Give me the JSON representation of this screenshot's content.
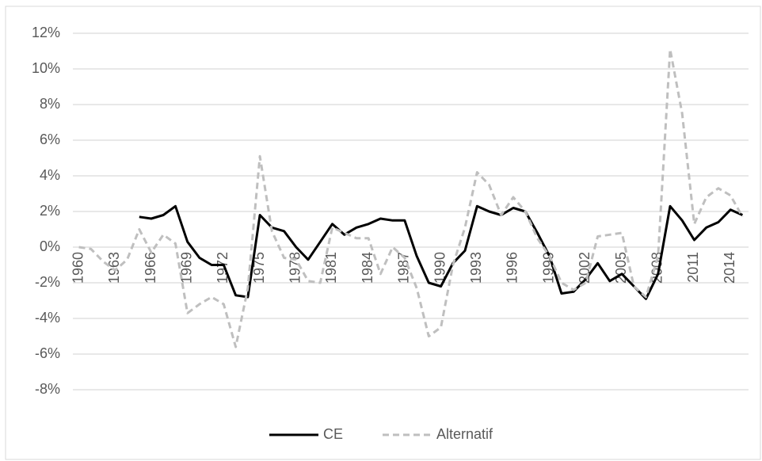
{
  "chart_data": {
    "type": "line",
    "categories": [
      "1960",
      null,
      null,
      "1963",
      null,
      null,
      "1966",
      null,
      null,
      "1969",
      null,
      null,
      "1972",
      null,
      null,
      "1975",
      null,
      null,
      "1978",
      null,
      null,
      "1981",
      null,
      null,
      "1984",
      null,
      null,
      "1987",
      null,
      null,
      "1990",
      null,
      null,
      "1993",
      null,
      null,
      "1996",
      null,
      null,
      "1999",
      null,
      null,
      "2002",
      null,
      null,
      "2005",
      null,
      null,
      "2008",
      null,
      null,
      "2011",
      null,
      null,
      "2014",
      null
    ],
    "series": [
      {
        "name": "CE",
        "color": "#000000",
        "dash": false,
        "values": [
          null,
          null,
          null,
          null,
          null,
          1.7,
          1.6,
          1.8,
          2.3,
          0.3,
          -0.6,
          -1.0,
          -1.0,
          -2.7,
          -2.8,
          1.8,
          1.1,
          0.9,
          0.0,
          -0.7,
          0.3,
          1.3,
          0.7,
          1.1,
          1.3,
          1.6,
          1.5,
          1.5,
          -0.5,
          -2.0,
          -2.2,
          -0.9,
          -0.2,
          2.3,
          2.0,
          1.8,
          2.2,
          2.0,
          0.8,
          -0.5,
          -2.6,
          -2.5,
          -1.8,
          -0.9,
          -1.9,
          -1.5,
          -2.2,
          -2.9,
          -1.5,
          2.3,
          1.5,
          0.4,
          1.1,
          1.4,
          2.1,
          1.8
        ]
      },
      {
        "name": "Alternatif",
        "color": "#bfbfbf",
        "dash": true,
        "values": [
          0.0,
          -0.1,
          -0.8,
          -1.3,
          -0.7,
          1.0,
          -0.3,
          0.7,
          0.2,
          -3.7,
          -3.2,
          -2.8,
          -3.2,
          -5.6,
          -2.3,
          5.1,
          0.9,
          -0.6,
          -0.7,
          -1.9,
          -2.0,
          1.1,
          0.8,
          0.5,
          0.5,
          -1.5,
          0.0,
          -0.6,
          -2.3,
          -5.0,
          -4.5,
          -1.0,
          1.1,
          4.2,
          3.5,
          1.8,
          2.8,
          2.0,
          0.5,
          -0.5,
          -2.0,
          -2.4,
          -2.0,
          0.6,
          0.7,
          0.8,
          -2.2,
          -2.8,
          -0.5,
          11.1,
          7.5,
          1.3,
          2.8,
          3.3,
          2.9,
          1.7
        ]
      }
    ],
    "ylim": [
      -8,
      12
    ],
    "yticks": [
      {
        "value": -8,
        "label": "-8%"
      },
      {
        "value": -6,
        "label": "-6%"
      },
      {
        "value": -4,
        "label": "-4%"
      },
      {
        "value": -2,
        "label": "-2%"
      },
      {
        "value": 0,
        "label": "0%"
      },
      {
        "value": 2,
        "label": "2%"
      },
      {
        "value": 4,
        "label": "4%"
      },
      {
        "value": 6,
        "label": "6%"
      },
      {
        "value": 8,
        "label": "8%"
      },
      {
        "value": 10,
        "label": "10%"
      },
      {
        "value": 12,
        "label": "12%"
      }
    ],
    "grid": true,
    "legend": "bottom"
  }
}
